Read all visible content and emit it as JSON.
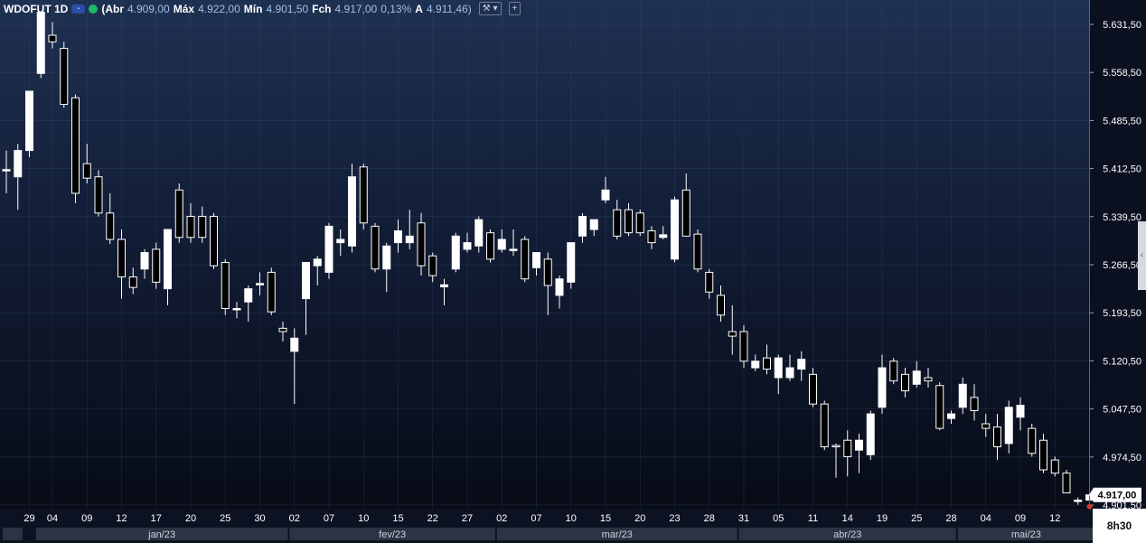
{
  "header": {
    "symbol": "WDOFUT 1D",
    "badge_icon": "broker-badge-icon",
    "status_icon": "market-open-dot-icon",
    "open_label": "(Abr",
    "open_value": "4.909,00",
    "high_label": "Máx",
    "high_value": "4.922,00",
    "low_label": "Mín",
    "low_value": "4.901,50",
    "close_label": "Fch",
    "close_value": "4.917,00",
    "change_value": "0,13%",
    "avg_label": "A",
    "avg_value": "4.911,46)",
    "tools_button": "⚒ ▾",
    "add_button": "+"
  },
  "collapse_button": "‹",
  "session_label": "8h30",
  "colors": {
    "background_top": "#1f3152",
    "background_bottom": "#070b16",
    "up_candle": "#ffffff",
    "down_candle": "#000000",
    "last_price_marker": "#d9352b"
  },
  "chart_data": {
    "type": "candlestick",
    "title": "",
    "xlabel": "",
    "ylabel": "",
    "ylim": [
      4860,
      5660
    ],
    "y_ticks": [
      {
        "value": 5631.5,
        "label": "5.631,50"
      },
      {
        "value": 5558.5,
        "label": "5.558,50"
      },
      {
        "value": 5485.5,
        "label": "5.485,50"
      },
      {
        "value": 5412.5,
        "label": "5.412,50"
      },
      {
        "value": 5339.5,
        "label": "5.339,50"
      },
      {
        "value": 5266.5,
        "label": "5.266,50"
      },
      {
        "value": 5193.5,
        "label": "5.193,50"
      },
      {
        "value": 5120.5,
        "label": "5.120,50"
      },
      {
        "value": 5047.5,
        "label": "5.047,50"
      },
      {
        "value": 4974.5,
        "label": "4.974,50"
      },
      {
        "value": 4901.5,
        "label": "4.901,50"
      }
    ],
    "last_price": {
      "value": 4917.0,
      "label": "4.917,00"
    },
    "x_ticks": [
      {
        "index": 2,
        "label": "29"
      },
      {
        "index": 4,
        "label": "04"
      },
      {
        "index": 7,
        "label": "09"
      },
      {
        "index": 10,
        "label": "12"
      },
      {
        "index": 13,
        "label": "17"
      },
      {
        "index": 16,
        "label": "20"
      },
      {
        "index": 19,
        "label": "25"
      },
      {
        "index": 22,
        "label": "30"
      },
      {
        "index": 25,
        "label": "02"
      },
      {
        "index": 28,
        "label": "07"
      },
      {
        "index": 31,
        "label": "10"
      },
      {
        "index": 34,
        "label": "15"
      },
      {
        "index": 37,
        "label": "22"
      },
      {
        "index": 40,
        "label": "27"
      },
      {
        "index": 43,
        "label": "02"
      },
      {
        "index": 46,
        "label": "07"
      },
      {
        "index": 49,
        "label": "10"
      },
      {
        "index": 52,
        "label": "15"
      },
      {
        "index": 55,
        "label": "20"
      },
      {
        "index": 58,
        "label": "23"
      },
      {
        "index": 61,
        "label": "28"
      },
      {
        "index": 64,
        "label": "31"
      },
      {
        "index": 67,
        "label": "05"
      },
      {
        "index": 70,
        "label": "11"
      },
      {
        "index": 73,
        "label": "14"
      },
      {
        "index": 76,
        "label": "19"
      },
      {
        "index": 79,
        "label": "25"
      },
      {
        "index": 82,
        "label": "28"
      },
      {
        "index": 85,
        "label": "04"
      },
      {
        "index": 88,
        "label": "09"
      },
      {
        "index": 91,
        "label": "12"
      }
    ],
    "months": [
      {
        "start": 3,
        "end": 24,
        "label": "jan/23"
      },
      {
        "start": 25,
        "end": 42,
        "label": "fev/23"
      },
      {
        "start": 43,
        "end": 63,
        "label": "mar/23"
      },
      {
        "start": 64,
        "end": 82,
        "label": "abr/23"
      },
      {
        "start": 83,
        "end": 94,
        "label": "mai/23"
      }
    ],
    "candles": [
      {
        "o": 5411,
        "h": 5440,
        "l": 5375,
        "c": 5411
      },
      {
        "o": 5400,
        "h": 5450,
        "l": 5350,
        "c": 5440
      },
      {
        "o": 5440,
        "h": 5530,
        "l": 5430,
        "c": 5530
      },
      {
        "o": 5557,
        "h": 5650,
        "l": 5550,
        "c": 5650
      },
      {
        "o": 5615,
        "h": 5635,
        "l": 5595,
        "c": 5605
      },
      {
        "o": 5595,
        "h": 5605,
        "l": 5505,
        "c": 5510
      },
      {
        "o": 5520,
        "h": 5525,
        "l": 5360,
        "c": 5375
      },
      {
        "o": 5420,
        "h": 5450,
        "l": 5390,
        "c": 5398
      },
      {
        "o": 5400,
        "h": 5410,
        "l": 5340,
        "c": 5345
      },
      {
        "o": 5345,
        "h": 5375,
        "l": 5298,
        "c": 5305
      },
      {
        "o": 5305,
        "h": 5320,
        "l": 5215,
        "c": 5248
      },
      {
        "o": 5248,
        "h": 5262,
        "l": 5222,
        "c": 5232
      },
      {
        "o": 5260,
        "h": 5290,
        "l": 5245,
        "c": 5285
      },
      {
        "o": 5290,
        "h": 5300,
        "l": 5230,
        "c": 5240
      },
      {
        "o": 5230,
        "h": 5320,
        "l": 5205,
        "c": 5320
      },
      {
        "o": 5380,
        "h": 5390,
        "l": 5300,
        "c": 5308
      },
      {
        "o": 5340,
        "h": 5360,
        "l": 5300,
        "c": 5308
      },
      {
        "o": 5340,
        "h": 5355,
        "l": 5300,
        "c": 5308
      },
      {
        "o": 5340,
        "h": 5345,
        "l": 5260,
        "c": 5265
      },
      {
        "o": 5270,
        "h": 5275,
        "l": 5190,
        "c": 5200
      },
      {
        "o": 5200,
        "h": 5210,
        "l": 5185,
        "c": 5200
      },
      {
        "o": 5210,
        "h": 5235,
        "l": 5180,
        "c": 5230
      },
      {
        "o": 5238,
        "h": 5255,
        "l": 5220,
        "c": 5238
      },
      {
        "o": 5255,
        "h": 5262,
        "l": 5190,
        "c": 5195
      },
      {
        "o": 5170,
        "h": 5180,
        "l": 5150,
        "c": 5165
      },
      {
        "o": 5135,
        "h": 5170,
        "l": 5055,
        "c": 5155
      },
      {
        "o": 5215,
        "h": 5270,
        "l": 5160,
        "c": 5270
      },
      {
        "o": 5265,
        "h": 5280,
        "l": 5235,
        "c": 5275
      },
      {
        "o": 5255,
        "h": 5330,
        "l": 5245,
        "c": 5325
      },
      {
        "o": 5300,
        "h": 5320,
        "l": 5280,
        "c": 5305
      },
      {
        "o": 5295,
        "h": 5420,
        "l": 5285,
        "c": 5400
      },
      {
        "o": 5415,
        "h": 5420,
        "l": 5320,
        "c": 5330
      },
      {
        "o": 5325,
        "h": 5330,
        "l": 5255,
        "c": 5260
      },
      {
        "o": 5260,
        "h": 5300,
        "l": 5225,
        "c": 5295
      },
      {
        "o": 5300,
        "h": 5335,
        "l": 5285,
        "c": 5318
      },
      {
        "o": 5300,
        "h": 5350,
        "l": 5290,
        "c": 5310
      },
      {
        "o": 5330,
        "h": 5345,
        "l": 5250,
        "c": 5265
      },
      {
        "o": 5280,
        "h": 5285,
        "l": 5240,
        "c": 5250
      },
      {
        "o": 5233,
        "h": 5245,
        "l": 5205,
        "c": 5236
      },
      {
        "o": 5260,
        "h": 5315,
        "l": 5255,
        "c": 5310
      },
      {
        "o": 5290,
        "h": 5315,
        "l": 5285,
        "c": 5300
      },
      {
        "o": 5295,
        "h": 5340,
        "l": 5285,
        "c": 5335
      },
      {
        "o": 5315,
        "h": 5320,
        "l": 5270,
        "c": 5275
      },
      {
        "o": 5290,
        "h": 5320,
        "l": 5285,
        "c": 5305
      },
      {
        "o": 5290,
        "h": 5320,
        "l": 5280,
        "c": 5290
      },
      {
        "o": 5305,
        "h": 5310,
        "l": 5240,
        "c": 5245
      },
      {
        "o": 5262,
        "h": 5280,
        "l": 5250,
        "c": 5285
      },
      {
        "o": 5275,
        "h": 5285,
        "l": 5190,
        "c": 5235
      },
      {
        "o": 5220,
        "h": 5250,
        "l": 5200,
        "c": 5245
      },
      {
        "o": 5240,
        "h": 5300,
        "l": 5230,
        "c": 5300
      },
      {
        "o": 5310,
        "h": 5345,
        "l": 5300,
        "c": 5340
      },
      {
        "o": 5320,
        "h": 5335,
        "l": 5310,
        "c": 5335
      },
      {
        "o": 5365,
        "h": 5400,
        "l": 5360,
        "c": 5380
      },
      {
        "o": 5350,
        "h": 5365,
        "l": 5305,
        "c": 5310
      },
      {
        "o": 5350,
        "h": 5360,
        "l": 5310,
        "c": 5315
      },
      {
        "o": 5345,
        "h": 5350,
        "l": 5310,
        "c": 5315
      },
      {
        "o": 5318,
        "h": 5325,
        "l": 5290,
        "c": 5300
      },
      {
        "o": 5308,
        "h": 5325,
        "l": 5305,
        "c": 5312
      },
      {
        "o": 5275,
        "h": 5370,
        "l": 5270,
        "c": 5365
      },
      {
        "o": 5380,
        "h": 5405,
        "l": 5310,
        "c": 5310
      },
      {
        "o": 5313,
        "h": 5320,
        "l": 5255,
        "c": 5260
      },
      {
        "o": 5255,
        "h": 5260,
        "l": 5215,
        "c": 5225
      },
      {
        "o": 5220,
        "h": 5235,
        "l": 5180,
        "c": 5190
      },
      {
        "o": 5165,
        "h": 5205,
        "l": 5130,
        "c": 5158
      },
      {
        "o": 5165,
        "h": 5175,
        "l": 5110,
        "c": 5120
      },
      {
        "o": 5110,
        "h": 5130,
        "l": 5105,
        "c": 5120
      },
      {
        "o": 5125,
        "h": 5145,
        "l": 5100,
        "c": 5108
      },
      {
        "o": 5095,
        "h": 5130,
        "l": 5070,
        "c": 5125
      },
      {
        "o": 5095,
        "h": 5130,
        "l": 5090,
        "c": 5110
      },
      {
        "o": 5108,
        "h": 5135,
        "l": 5090,
        "c": 5123
      },
      {
        "o": 5100,
        "h": 5110,
        "l": 5050,
        "c": 5055
      },
      {
        "o": 5055,
        "h": 5060,
        "l": 4985,
        "c": 4990
      },
      {
        "o": 4992,
        "h": 4995,
        "l": 4943,
        "c": 4990
      },
      {
        "o": 5000,
        "h": 5015,
        "l": 4945,
        "c": 4975
      },
      {
        "o": 4985,
        "h": 5010,
        "l": 4950,
        "c": 5000
      },
      {
        "o": 4978,
        "h": 5045,
        "l": 4970,
        "c": 5040
      },
      {
        "o": 5050,
        "h": 5130,
        "l": 5040,
        "c": 5110
      },
      {
        "o": 5120,
        "h": 5125,
        "l": 5085,
        "c": 5090
      },
      {
        "o": 5100,
        "h": 5110,
        "l": 5065,
        "c": 5075
      },
      {
        "o": 5085,
        "h": 5120,
        "l": 5080,
        "c": 5105
      },
      {
        "o": 5095,
        "h": 5110,
        "l": 5080,
        "c": 5090
      },
      {
        "o": 5083,
        "h": 5088,
        "l": 5015,
        "c": 5018
      },
      {
        "o": 5033,
        "h": 5045,
        "l": 5025,
        "c": 5040
      },
      {
        "o": 5050,
        "h": 5095,
        "l": 5040,
        "c": 5085
      },
      {
        "o": 5065,
        "h": 5085,
        "l": 5030,
        "c": 5045
      },
      {
        "o": 5025,
        "h": 5040,
        "l": 5005,
        "c": 5018
      },
      {
        "o": 5020,
        "h": 5040,
        "l": 4970,
        "c": 4990
      },
      {
        "o": 4995,
        "h": 5060,
        "l": 4980,
        "c": 5050
      },
      {
        "o": 5035,
        "h": 5065,
        "l": 5015,
        "c": 5053
      },
      {
        "o": 5018,
        "h": 5025,
        "l": 4975,
        "c": 4980
      },
      {
        "o": 5000,
        "h": 5010,
        "l": 4950,
        "c": 4955
      },
      {
        "o": 4970,
        "h": 4975,
        "l": 4945,
        "c": 4950
      },
      {
        "o": 4950,
        "h": 4955,
        "l": 4922,
        "c": 4920
      },
      {
        "o": 4907,
        "h": 4913,
        "l": 4902,
        "c": 4909
      },
      {
        "o": 4909,
        "h": 4922,
        "l": 4901.5,
        "c": 4917
      }
    ]
  }
}
